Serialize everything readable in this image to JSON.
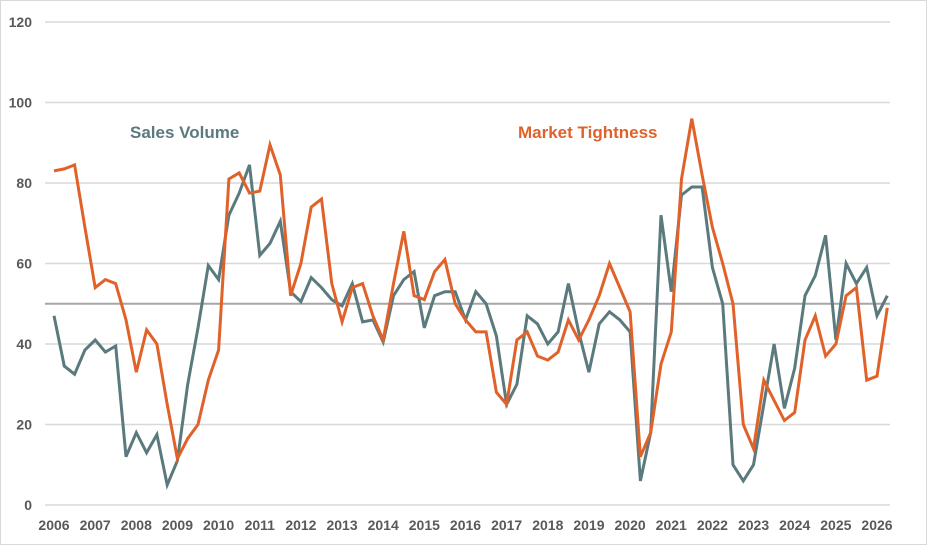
{
  "chart_data": {
    "type": "line",
    "title": "",
    "xlabel": "",
    "ylabel": "",
    "ylim": [
      0,
      120
    ],
    "yticks": [
      "0",
      "20",
      "40",
      "60",
      "80",
      "100",
      "120"
    ],
    "xticks": [
      "2006",
      "2007",
      "2008",
      "2009",
      "2010",
      "2011",
      "2012",
      "2013",
      "2014",
      "2015",
      "2016",
      "2017",
      "2018",
      "2019",
      "2020",
      "2021",
      "2022",
      "2023",
      "2024",
      "2025",
      "2026"
    ],
    "x_start": 2006,
    "x_frequency": "quarterly",
    "grid": "horizontal",
    "reference_line": 50,
    "series": [
      {
        "name": "Sales Volume",
        "color": "#5a7a7e",
        "values": [
          47,
          34.5,
          32.5,
          38.5,
          41,
          38,
          39.5,
          12,
          18,
          13,
          17.5,
          5,
          11,
          30,
          44,
          59.5,
          56,
          72,
          77.5,
          84.5,
          62,
          65,
          70.5,
          53,
          50.5,
          56.5,
          54,
          51,
          49.5,
          55,
          45.5,
          46,
          40.5,
          52,
          56,
          58,
          44,
          52,
          53,
          53,
          46,
          53,
          50,
          42,
          25,
          30,
          47,
          45,
          40,
          43,
          55,
          43,
          33,
          45,
          48,
          46,
          43,
          6,
          18,
          72,
          53,
          77,
          79,
          79,
          59,
          50,
          10,
          6,
          10,
          25,
          40,
          24,
          34,
          52,
          57,
          67,
          41,
          60,
          55,
          59,
          47,
          52
        ]
      },
      {
        "name": "Market Tightness",
        "color": "#e0622a",
        "values": [
          83,
          83.5,
          84.5,
          69,
          54,
          56,
          55,
          46,
          33,
          43.5,
          40,
          25,
          11.5,
          16.5,
          20,
          31,
          38.5,
          81,
          82.5,
          77.5,
          78,
          89.5,
          82,
          52,
          60,
          74,
          76,
          55,
          45.5,
          54,
          55,
          47,
          41,
          55,
          68,
          52,
          51,
          58,
          61,
          50,
          46,
          43,
          43,
          28,
          25,
          41,
          43,
          37,
          36,
          38,
          46,
          41,
          46,
          52,
          60,
          54,
          48,
          12,
          18,
          35,
          43,
          81,
          96,
          82,
          69,
          60,
          50,
          20,
          14,
          31,
          26,
          21,
          23,
          41,
          47,
          37,
          40,
          52,
          54,
          31,
          32,
          49
        ]
      }
    ]
  }
}
